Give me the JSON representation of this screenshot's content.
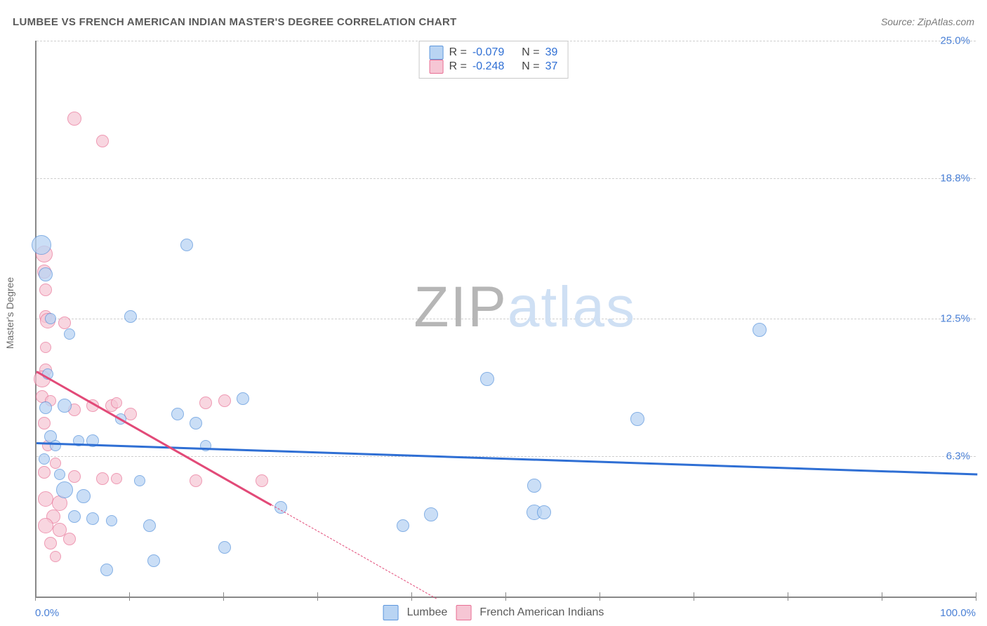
{
  "header": {
    "title": "LUMBEE VS FRENCH AMERICAN INDIAN MASTER'S DEGREE CORRELATION CHART",
    "source": "Source: ZipAtlas.com"
  },
  "watermark": {
    "text_a": "ZIP",
    "text_b": "atlas",
    "color_a": "#b6b6b6",
    "color_b": "#cfe0f4"
  },
  "chart": {
    "type": "scatter",
    "background_color": "#ffffff",
    "grid_color": "#cfcfcf",
    "axis_color": "#888888",
    "tick_color": "#4a80d6",
    "xlim": [
      0,
      100
    ],
    "ylim": [
      0,
      25
    ],
    "ytick_values": [
      6.3,
      12.5,
      18.8,
      25.0
    ],
    "ytick_labels": [
      "6.3%",
      "12.5%",
      "18.8%",
      "25.0%"
    ],
    "xtick_min": "0.0%",
    "xtick_max": "100.0%",
    "x_tickmarks": [
      0,
      10,
      20,
      30,
      40,
      50,
      60,
      70,
      80,
      90,
      100
    ],
    "ylabel": "Master's Degree",
    "label_fontsize": 14,
    "tick_fontsize": 15
  },
  "series": {
    "lumbee": {
      "label": "Lumbee",
      "fill": "#b9d4f3",
      "stroke": "#5c96dd",
      "opacity": 0.75,
      "R": "-0.079",
      "N": "39",
      "trend": {
        "y_at_x0": 7.0,
        "y_at_x100": 5.6,
        "color": "#2f6fd4",
        "width": 3,
        "dash": false
      },
      "points": [
        {
          "x": 0.5,
          "y": 15.8,
          "r": 14
        },
        {
          "x": 1.0,
          "y": 14.5,
          "r": 10
        },
        {
          "x": 1.5,
          "y": 12.5,
          "r": 8
        },
        {
          "x": 1.0,
          "y": 8.5,
          "r": 9
        },
        {
          "x": 3.0,
          "y": 8.6,
          "r": 10
        },
        {
          "x": 1.5,
          "y": 7.2,
          "r": 9
        },
        {
          "x": 2.0,
          "y": 6.8,
          "r": 8
        },
        {
          "x": 6.0,
          "y": 7.0,
          "r": 9
        },
        {
          "x": 5.0,
          "y": 4.5,
          "r": 10
        },
        {
          "x": 3.0,
          "y": 4.8,
          "r": 12
        },
        {
          "x": 4.0,
          "y": 3.6,
          "r": 9
        },
        {
          "x": 6.0,
          "y": 3.5,
          "r": 9
        },
        {
          "x": 8.0,
          "y": 3.4,
          "r": 8
        },
        {
          "x": 10.0,
          "y": 12.6,
          "r": 9
        },
        {
          "x": 12.0,
          "y": 3.2,
          "r": 9
        },
        {
          "x": 12.5,
          "y": 1.6,
          "r": 9
        },
        {
          "x": 15.0,
          "y": 8.2,
          "r": 9
        },
        {
          "x": 16.0,
          "y": 15.8,
          "r": 9
        },
        {
          "x": 17.0,
          "y": 7.8,
          "r": 9
        },
        {
          "x": 20.0,
          "y": 2.2,
          "r": 9
        },
        {
          "x": 22.0,
          "y": 8.9,
          "r": 9
        },
        {
          "x": 26.0,
          "y": 4.0,
          "r": 9
        },
        {
          "x": 39.0,
          "y": 3.2,
          "r": 9
        },
        {
          "x": 42.0,
          "y": 3.7,
          "r": 10
        },
        {
          "x": 48.0,
          "y": 9.8,
          "r": 10
        },
        {
          "x": 53.0,
          "y": 3.8,
          "r": 11
        },
        {
          "x": 53.0,
          "y": 5.0,
          "r": 10
        },
        {
          "x": 54.0,
          "y": 3.8,
          "r": 10
        },
        {
          "x": 64.0,
          "y": 8.0,
          "r": 10
        },
        {
          "x": 77.0,
          "y": 12.0,
          "r": 10
        },
        {
          "x": 2.5,
          "y": 5.5,
          "r": 8
        },
        {
          "x": 7.5,
          "y": 1.2,
          "r": 9
        },
        {
          "x": 4.5,
          "y": 7.0,
          "r": 8
        },
        {
          "x": 1.2,
          "y": 10.0,
          "r": 8
        },
        {
          "x": 9.0,
          "y": 8.0,
          "r": 8
        },
        {
          "x": 18.0,
          "y": 6.8,
          "r": 8
        },
        {
          "x": 11.0,
          "y": 5.2,
          "r": 8
        },
        {
          "x": 3.5,
          "y": 11.8,
          "r": 8
        },
        {
          "x": 0.8,
          "y": 6.2,
          "r": 8
        }
      ]
    },
    "french": {
      "label": "French American Indians",
      "fill": "#f6c6d4",
      "stroke": "#e86f94",
      "opacity": 0.7,
      "R": "-0.248",
      "N": "37",
      "trend": {
        "y_at_x0": 10.2,
        "y_at_x25": 4.2,
        "y_at_x50": -1.0,
        "color": "#e24a78",
        "width": 3,
        "dash_after_x": 25
      },
      "points": [
        {
          "x": 4.0,
          "y": 21.5,
          "r": 10
        },
        {
          "x": 7.0,
          "y": 20.5,
          "r": 9
        },
        {
          "x": 0.8,
          "y": 15.4,
          "r": 12
        },
        {
          "x": 0.8,
          "y": 14.6,
          "r": 10
        },
        {
          "x": 1.0,
          "y": 13.8,
          "r": 9
        },
        {
          "x": 1.0,
          "y": 12.6,
          "r": 9
        },
        {
          "x": 1.2,
          "y": 12.4,
          "r": 11
        },
        {
          "x": 3.0,
          "y": 12.3,
          "r": 9
        },
        {
          "x": 1.0,
          "y": 11.2,
          "r": 8
        },
        {
          "x": 1.0,
          "y": 10.2,
          "r": 9
        },
        {
          "x": 0.6,
          "y": 9.8,
          "r": 12
        },
        {
          "x": 0.6,
          "y": 9.0,
          "r": 9
        },
        {
          "x": 1.5,
          "y": 8.8,
          "r": 8
        },
        {
          "x": 4.0,
          "y": 8.4,
          "r": 9
        },
        {
          "x": 6.0,
          "y": 8.6,
          "r": 9
        },
        {
          "x": 8.0,
          "y": 8.6,
          "r": 9
        },
        {
          "x": 8.5,
          "y": 8.7,
          "r": 8
        },
        {
          "x": 10.0,
          "y": 8.2,
          "r": 9
        },
        {
          "x": 18.0,
          "y": 8.7,
          "r": 9
        },
        {
          "x": 20.0,
          "y": 8.8,
          "r": 9
        },
        {
          "x": 0.8,
          "y": 7.8,
          "r": 9
        },
        {
          "x": 1.2,
          "y": 6.8,
          "r": 8
        },
        {
          "x": 2.0,
          "y": 6.0,
          "r": 8
        },
        {
          "x": 0.8,
          "y": 5.6,
          "r": 9
        },
        {
          "x": 4.0,
          "y": 5.4,
          "r": 9
        },
        {
          "x": 7.0,
          "y": 5.3,
          "r": 9
        },
        {
          "x": 8.5,
          "y": 5.3,
          "r": 8
        },
        {
          "x": 17.0,
          "y": 5.2,
          "r": 9
        },
        {
          "x": 24.0,
          "y": 5.2,
          "r": 9
        },
        {
          "x": 1.0,
          "y": 4.4,
          "r": 11
        },
        {
          "x": 2.5,
          "y": 4.2,
          "r": 11
        },
        {
          "x": 1.8,
          "y": 3.6,
          "r": 10
        },
        {
          "x": 1.0,
          "y": 3.2,
          "r": 11
        },
        {
          "x": 2.5,
          "y": 3.0,
          "r": 10
        },
        {
          "x": 3.5,
          "y": 2.6,
          "r": 9
        },
        {
          "x": 1.5,
          "y": 2.4,
          "r": 9
        },
        {
          "x": 2.0,
          "y": 1.8,
          "r": 8
        }
      ]
    }
  },
  "legend_top": {
    "r_label": "R =",
    "n_label": "N ="
  }
}
